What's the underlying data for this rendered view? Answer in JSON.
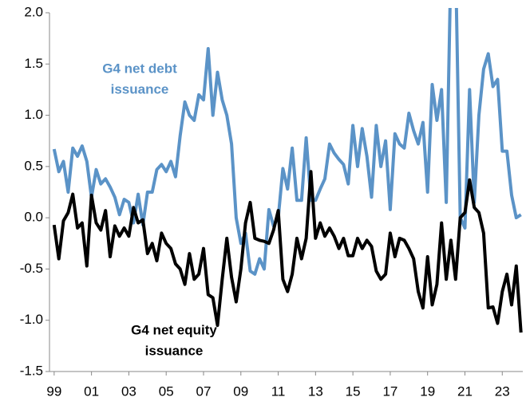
{
  "chart_data": {
    "type": "line",
    "x": [
      1999,
      1999.25,
      1999.5,
      1999.75,
      2000,
      2000.25,
      2000.5,
      2000.75,
      2001,
      2001.25,
      2001.5,
      2001.75,
      2002,
      2002.25,
      2002.5,
      2002.75,
      2003,
      2003.25,
      2003.5,
      2003.75,
      2004,
      2004.25,
      2004.5,
      2004.75,
      2005,
      2005.25,
      2005.5,
      2005.75,
      2006,
      2006.25,
      2006.5,
      2006.75,
      2007,
      2007.25,
      2007.5,
      2007.75,
      2008,
      2008.25,
      2008.5,
      2008.75,
      2009,
      2009.25,
      2009.5,
      2009.75,
      2010,
      2010.25,
      2010.5,
      2010.75,
      2011,
      2011.25,
      2011.5,
      2011.75,
      2012,
      2012.25,
      2012.5,
      2012.75,
      2013,
      2013.25,
      2013.5,
      2013.75,
      2014,
      2014.25,
      2014.5,
      2014.75,
      2015,
      2015.25,
      2015.5,
      2015.75,
      2016,
      2016.25,
      2016.5,
      2016.75,
      2017,
      2017.25,
      2017.5,
      2017.75,
      2018,
      2018.25,
      2018.5,
      2018.75,
      2019,
      2019.25,
      2019.5,
      2019.75,
      2020,
      2020.25,
      2020.5,
      2020.75,
      2021,
      2021.25,
      2021.5,
      2021.75,
      2022,
      2022.25,
      2022.5,
      2022.75,
      2023,
      2023.25,
      2023.5,
      2023.75,
      2024
    ],
    "series": [
      {
        "color": "#5b93c7",
        "values": [
          0.67,
          0.45,
          0.55,
          0.25,
          0.68,
          0.6,
          0.7,
          0.55,
          0.2,
          0.47,
          0.33,
          0.38,
          0.3,
          0.2,
          0.03,
          0.18,
          0.15,
          -0.05,
          0.23,
          -0.07,
          0.25,
          0.25,
          0.47,
          0.52,
          0.45,
          0.55,
          0.4,
          0.8,
          1.13,
          1.0,
          0.95,
          1.2,
          1.15,
          1.65,
          1.0,
          1.42,
          1.15,
          1.0,
          0.72,
          0.0,
          -0.25,
          -0.15,
          -0.52,
          -0.55,
          -0.4,
          -0.5,
          0.08,
          -0.08,
          0.0,
          0.48,
          0.28,
          0.68,
          0.17,
          0.17,
          0.78,
          0.17,
          0.17,
          0.28,
          0.38,
          0.72,
          0.63,
          0.57,
          0.52,
          0.33,
          0.9,
          0.5,
          0.87,
          0.6,
          0.2,
          0.9,
          0.5,
          0.75,
          0.08,
          0.82,
          0.72,
          0.68,
          1.02,
          0.85,
          0.72,
          0.93,
          0.25,
          1.3,
          0.95,
          1.25,
          0.15,
          2.5,
          2.5,
          0.0,
          -0.1,
          1.25,
          0.15,
          1.0,
          1.45,
          1.6,
          1.28,
          1.35,
          0.65,
          0.65,
          0.22,
          0.0,
          0.03
        ]
      },
      {
        "color": "#000000",
        "values": [
          -0.07,
          -0.4,
          -0.03,
          0.05,
          0.23,
          -0.1,
          -0.05,
          -0.47,
          0.22,
          -0.05,
          -0.12,
          0.07,
          -0.38,
          -0.08,
          -0.18,
          -0.1,
          -0.18,
          0.1,
          -0.05,
          -0.02,
          -0.35,
          -0.25,
          -0.42,
          -0.15,
          -0.25,
          -0.3,
          -0.45,
          -0.5,
          -0.65,
          -0.35,
          -0.6,
          -0.55,
          -0.3,
          -0.75,
          -0.78,
          -1.05,
          -0.6,
          -0.2,
          -0.58,
          -0.82,
          -0.5,
          -0.05,
          0.15,
          -0.2,
          -0.22,
          -0.23,
          -0.25,
          -0.12,
          0.07,
          -0.6,
          -0.72,
          -0.55,
          -0.2,
          -0.4,
          -0.2,
          0.45,
          -0.2,
          -0.05,
          -0.18,
          -0.1,
          -0.18,
          -0.3,
          -0.2,
          -0.37,
          -0.37,
          -0.2,
          -0.3,
          -0.22,
          -0.28,
          -0.52,
          -0.6,
          -0.55,
          -0.15,
          -0.38,
          -0.2,
          -0.22,
          -0.3,
          -0.4,
          -0.72,
          -0.88,
          -0.38,
          -0.85,
          -0.65,
          -0.05,
          -0.6,
          -0.22,
          -0.6,
          0.0,
          0.05,
          0.37,
          0.1,
          0.05,
          -0.15,
          -0.88,
          -0.87,
          -1.03,
          -0.72,
          -0.55,
          -0.85,
          -0.47,
          -1.12
        ]
      }
    ],
    "annotations": [
      {
        "lines": [
          "G4 net debt",
          "issuance"
        ],
        "color": "#5b93c7"
      },
      {
        "lines": [
          "G4 net equity",
          "issuance"
        ],
        "color": "#000000"
      }
    ],
    "xlim": [
      1998.75,
      2024.1
    ],
    "xticks": [
      {
        "value": 1999,
        "label": "99"
      },
      {
        "value": 2001,
        "label": "01"
      },
      {
        "value": 2003,
        "label": "03"
      },
      {
        "value": 2005,
        "label": "05"
      },
      {
        "value": 2007,
        "label": "07"
      },
      {
        "value": 2009,
        "label": "09"
      },
      {
        "value": 2011,
        "label": "11"
      },
      {
        "value": 2013,
        "label": "13"
      },
      {
        "value": 2015,
        "label": "15"
      },
      {
        "value": 2017,
        "label": "17"
      },
      {
        "value": 2019,
        "label": "19"
      },
      {
        "value": 2021,
        "label": "21"
      },
      {
        "value": 2023,
        "label": "23"
      }
    ],
    "ylim": [
      -1.5,
      2.0
    ],
    "yticks": [
      {
        "value": 2.0,
        "label": "2.0"
      },
      1.5,
      {
        "value": 1.0,
        "label": "1.0"
      },
      0.5,
      {
        "value": 0.0,
        "label": "0.0"
      },
      -0.5,
      {
        "value": -1.0,
        "label": "-1.0"
      },
      -1.5
    ]
  }
}
